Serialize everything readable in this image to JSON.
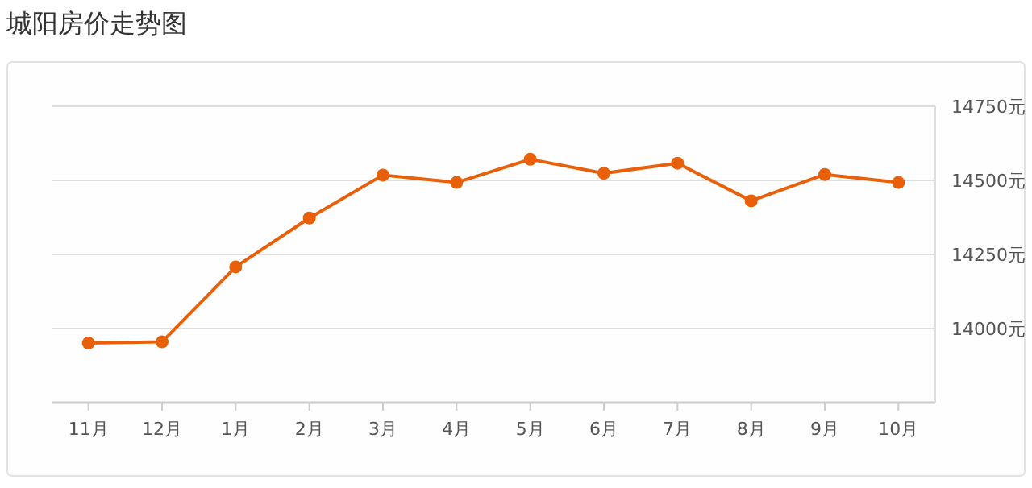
{
  "chart_data": {
    "type": "line",
    "title": "城阳房价走势图",
    "categories": [
      "11月",
      "12月",
      "1月",
      "2月",
      "3月",
      "4月",
      "5月",
      "6月",
      "7月",
      "8月",
      "9月",
      "10月"
    ],
    "series": [
      {
        "color": "#e8600a",
        "values": [
          13951,
          13955,
          14208,
          14373,
          14518,
          14493,
          14571,
          14524,
          14558,
          14431,
          14520,
          14493
        ]
      }
    ],
    "ylim": [
      13750,
      14750
    ],
    "yticks": [
      {
        "value": 14000,
        "label": "14000元"
      },
      {
        "value": 14250,
        "label": "14250元"
      },
      {
        "value": 14500,
        "label": "14500元"
      },
      {
        "value": 14750,
        "label": "14750元"
      }
    ],
    "grid": "y",
    "marker": "circle",
    "line_style": "solid"
  }
}
